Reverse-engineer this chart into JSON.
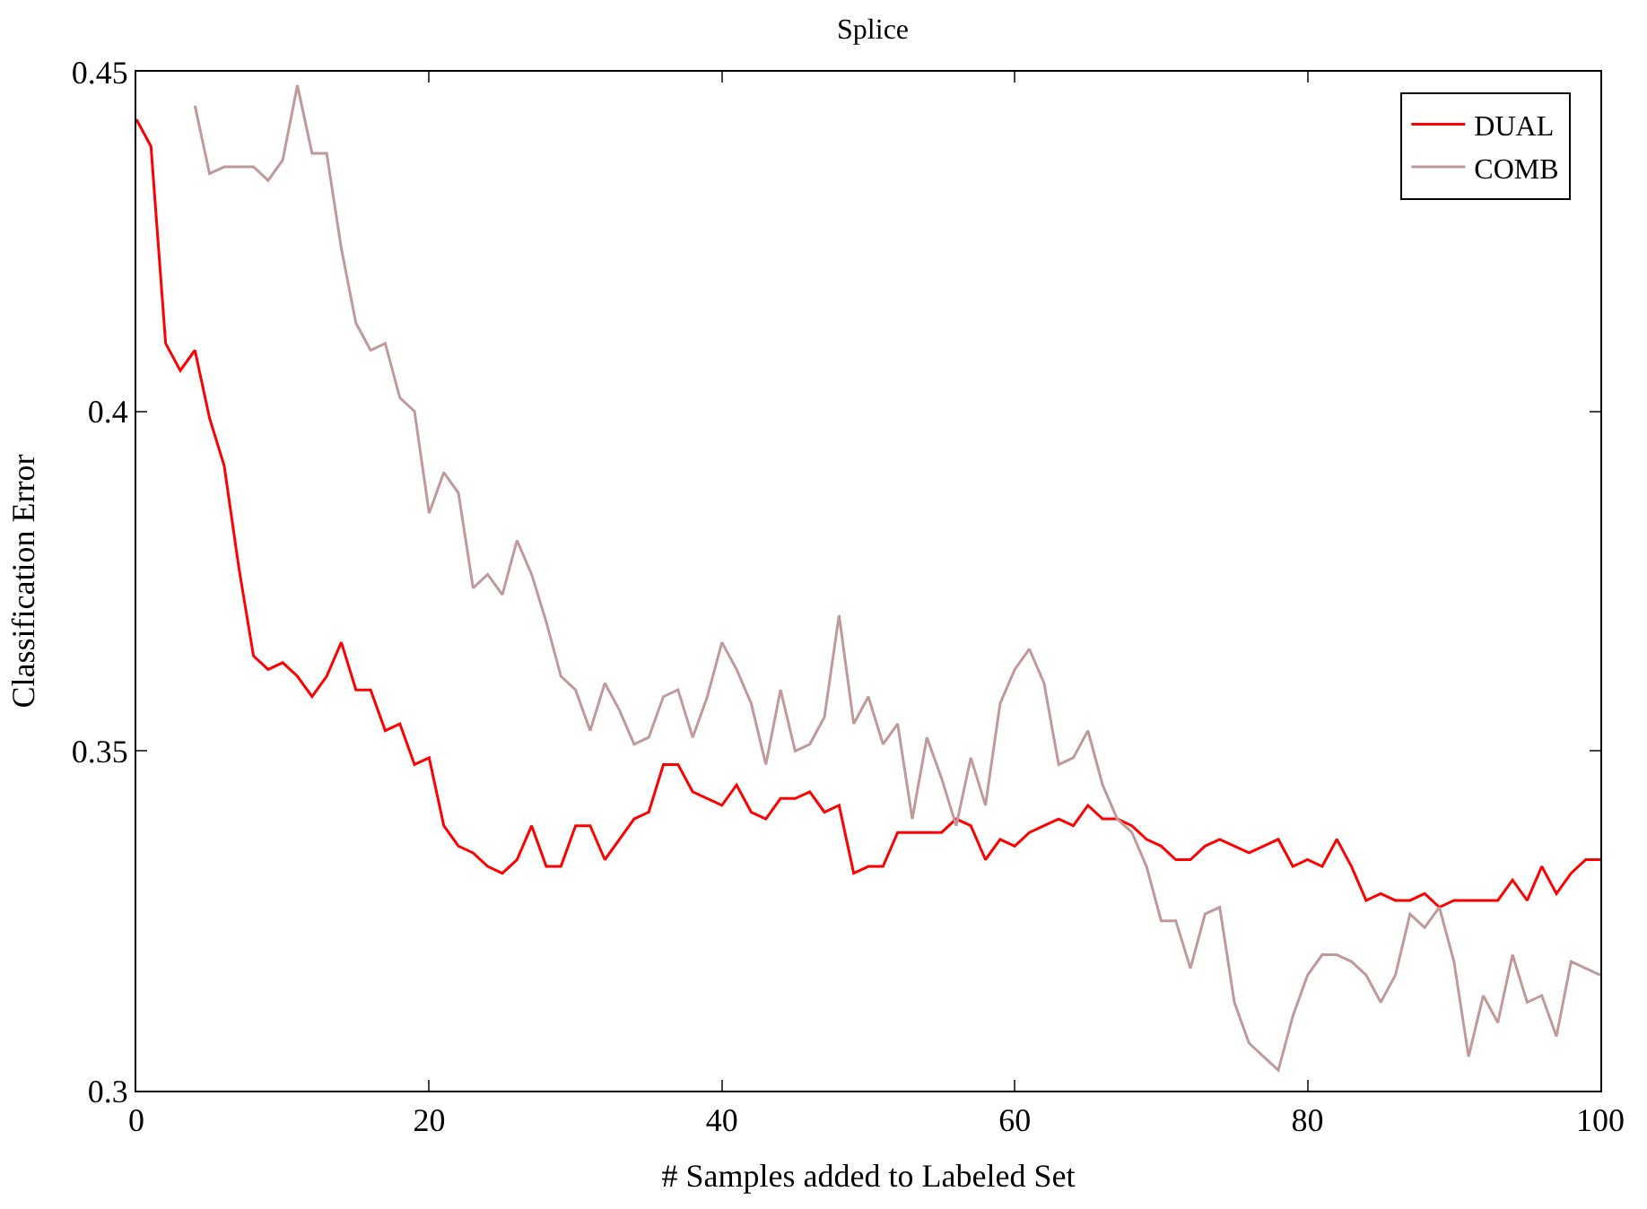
{
  "chart_data": {
    "type": "line",
    "title": "Splice",
    "xlabel": "# Samples added to Labeled Set",
    "ylabel": "Classification Error",
    "x": [
      0,
      1,
      2,
      3,
      4,
      5,
      6,
      7,
      8,
      9,
      10,
      11,
      12,
      13,
      14,
      15,
      16,
      17,
      18,
      19,
      20,
      21,
      22,
      23,
      24,
      25,
      26,
      27,
      28,
      29,
      30,
      31,
      32,
      33,
      34,
      35,
      36,
      37,
      38,
      39,
      40,
      41,
      42,
      43,
      44,
      45,
      46,
      47,
      48,
      49,
      50,
      51,
      52,
      53,
      54,
      55,
      56,
      57,
      58,
      59,
      60,
      61,
      62,
      63,
      64,
      65,
      66,
      67,
      68,
      69,
      70,
      71,
      72,
      73,
      74,
      75,
      76,
      77,
      78,
      79,
      80,
      81,
      82,
      83,
      84,
      85,
      86,
      87,
      88,
      89,
      90,
      91,
      92,
      93,
      94,
      95,
      96,
      97,
      98,
      99,
      100
    ],
    "series": [
      {
        "name": "DUAL",
        "color": "#ff0000",
        "values": [
          0.443,
          0.439,
          0.41,
          0.406,
          0.409,
          0.399,
          0.392,
          0.377,
          0.364,
          0.362,
          0.363,
          0.361,
          0.358,
          0.361,
          0.366,
          0.359,
          0.359,
          0.353,
          0.354,
          0.348,
          0.349,
          0.339,
          0.336,
          0.335,
          0.333,
          0.332,
          0.334,
          0.339,
          0.333,
          0.333,
          0.339,
          0.339,
          0.334,
          0.337,
          0.34,
          0.341,
          0.348,
          0.348,
          0.344,
          0.343,
          0.342,
          0.345,
          0.341,
          0.34,
          0.343,
          0.343,
          0.344,
          0.341,
          0.342,
          0.332,
          0.333,
          0.333,
          0.338,
          0.338,
          0.338,
          0.338,
          0.34,
          0.339,
          0.334,
          0.337,
          0.336,
          0.338,
          0.339,
          0.34,
          0.339,
          0.342,
          0.34,
          0.34,
          0.339,
          0.337,
          0.336,
          0.334,
          0.334,
          0.336,
          0.337,
          0.336,
          0.335,
          0.336,
          0.337,
          0.333,
          0.334,
          0.333,
          0.337,
          0.333,
          0.328,
          0.329,
          0.328,
          0.328,
          0.329,
          0.327,
          0.328,
          0.328,
          0.328,
          0.328,
          0.331,
          0.328,
          0.333,
          0.329,
          0.332,
          0.334,
          0.334
        ]
      },
      {
        "name": "COMB",
        "color": "#c09a9a",
        "values": [
          null,
          null,
          null,
          null,
          0.445,
          0.435,
          0.436,
          0.436,
          0.436,
          0.434,
          0.437,
          0.448,
          0.438,
          0.438,
          0.424,
          0.413,
          0.409,
          0.41,
          0.402,
          0.4,
          0.385,
          0.391,
          0.388,
          0.374,
          0.376,
          0.373,
          0.381,
          0.376,
          0.369,
          0.361,
          0.359,
          0.353,
          0.36,
          0.356,
          0.351,
          0.352,
          0.358,
          0.359,
          0.352,
          0.358,
          0.366,
          0.362,
          0.357,
          0.348,
          0.359,
          0.35,
          0.351,
          0.355,
          0.37,
          0.354,
          0.358,
          0.351,
          0.354,
          0.34,
          0.352,
          0.346,
          0.339,
          0.349,
          0.342,
          0.357,
          0.362,
          0.365,
          0.36,
          0.348,
          0.349,
          0.353,
          0.345,
          0.34,
          0.338,
          0.333,
          0.325,
          0.325,
          0.318,
          0.326,
          0.327,
          0.313,
          0.307,
          0.305,
          0.303,
          0.311,
          0.317,
          0.32,
          0.32,
          0.319,
          0.317,
          0.313,
          0.317,
          0.326,
          0.324,
          0.327,
          0.319,
          0.305,
          0.314,
          0.31,
          0.32,
          0.313,
          0.314,
          0.308,
          0.319,
          0.318,
          0.317
        ]
      }
    ],
    "xlim": [
      0,
      100
    ],
    "xticks": [
      0,
      20,
      40,
      60,
      80,
      100
    ],
    "ylim": [
      0.3,
      0.45
    ],
    "yticks": [
      0.3,
      0.35,
      0.4,
      0.45
    ],
    "legend": "top right",
    "marker": "none",
    "line_style": "solid"
  }
}
